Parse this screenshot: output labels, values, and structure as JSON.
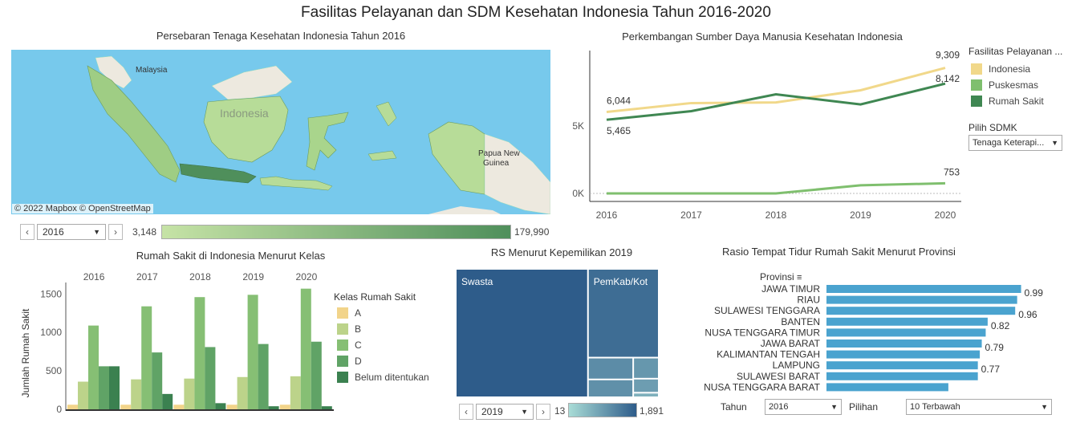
{
  "title": "Fasilitas Pelayanan dan SDM Kesehatan Indonesia Tahun 2016-2020",
  "map": {
    "title": "Persebaran Tenaga Kesehatan Indonesia Tahun 2016",
    "labels": {
      "malaysia": "Malaysia",
      "indonesia": "Indonesia",
      "png": "Papua New Guinea"
    },
    "attribution": "© 2022 Mapbox  © OpenStreetMap",
    "year": "2016",
    "range_min": "3,148",
    "range_max": "179,990",
    "colors": {
      "sea": "#77c9ec",
      "land_light": "#c6e3a6",
      "land_dark": "#4f8f5b",
      "foreign": "#ede9df"
    }
  },
  "line": {
    "title": "Perkembangan Sumber Daya Manusia Kesehatan Indonesia",
    "legend_title": "Fasilitas Pelayanan ...",
    "dropdown_label": "Pilih SDMK",
    "dropdown_value": "Tenaga Keterapi...",
    "y_ticks": [
      "0K",
      "5K"
    ],
    "x_ticks": [
      "2016",
      "2017",
      "2018",
      "2019",
      "2020"
    ]
  },
  "hospital_class": {
    "title": "Rumah Sakit di Indonesia Menurut Kelas",
    "ylabel": "Jumlah Rumah Sakit",
    "legend_title": "Kelas Rumah Sakit",
    "y_ticks": [
      "0",
      "500",
      "1000",
      "1500"
    ]
  },
  "treemap": {
    "title": "RS Menurut Kepemilikan  2019",
    "labels": {
      "swasta": "Swasta",
      "pemkab": "PemKab/Kot"
    },
    "year": "2019",
    "range_min": "13",
    "range_max": "1,891"
  },
  "bed_ratio": {
    "title": "Rasio Tempat  Tidur Rumah Sakit Menurut Provinsi",
    "axis_label": "Provinsi",
    "filter_year_label": "Tahun",
    "filter_year": "2016",
    "filter_choice_label": "Pilihan",
    "filter_choice": "10 Terbawah"
  },
  "chart_data": [
    {
      "type": "line",
      "title": "Perkembangan Sumber Daya Manusia Kesehatan Indonesia",
      "x": [
        2016,
        2017,
        2018,
        2019,
        2020
      ],
      "ylim": [
        0,
        10000
      ],
      "series": [
        {
          "name": "Indonesia",
          "color": "#f1d88a",
          "values": [
            6044,
            6700,
            6750,
            7650,
            9309
          ],
          "labels": {
            "0": "6,044",
            "4": "9,309"
          }
        },
        {
          "name": "Puskesmas",
          "color": "#7fbf6e",
          "values": [
            0,
            0,
            0,
            600,
            753
          ],
          "labels": {
            "4": "753"
          }
        },
        {
          "name": "Rumah Sakit",
          "color": "#3f8752",
          "values": [
            5465,
            6100,
            7350,
            6600,
            8142
          ],
          "labels": {
            "0": "5,465",
            "4": "8,142"
          }
        }
      ]
    },
    {
      "type": "bar",
      "title": "Rumah Sakit di Indonesia Menurut Kelas",
      "ylabel": "Jumlah Rumah Sakit",
      "categories": [
        "2016",
        "2017",
        "2018",
        "2019",
        "2020"
      ],
      "ylim": [
        0,
        1650
      ],
      "series": [
        {
          "name": "A",
          "color": "#f2d48a",
          "values": [
            60,
            60,
            60,
            60,
            60
          ]
        },
        {
          "name": "B",
          "color": "#bcd38a",
          "values": [
            360,
            390,
            400,
            420,
            430
          ]
        },
        {
          "name": "C",
          "color": "#86bf74",
          "values": [
            1090,
            1340,
            1460,
            1490,
            1570
          ]
        },
        {
          "name": "D",
          "color": "#60a366",
          "values": [
            560,
            740,
            810,
            850,
            880
          ]
        },
        {
          "name": "Belum ditentukan",
          "color": "#3b8150",
          "values": [
            560,
            200,
            80,
            40,
            40
          ]
        }
      ]
    },
    {
      "type": "treemap",
      "title": "RS Menurut Kepemilikan  2019",
      "items": [
        {
          "name": "Swasta",
          "value": 1891
        },
        {
          "name": "PemKab/Kot",
          "value": 700
        },
        {
          "name": "",
          "value": 110
        },
        {
          "name": "",
          "value": 90
        },
        {
          "name": "",
          "value": 60
        },
        {
          "name": "",
          "value": 40
        },
        {
          "name": "",
          "value": 13
        }
      ]
    },
    {
      "type": "bar",
      "title": "Rasio Tempat  Tidur Rumah Sakit Menurut Provinsi",
      "orientation": "horizontal",
      "categories": [
        "JAWA TIMUR",
        "RIAU",
        "SULAWESI TENGGARA",
        "BANTEN",
        "NUSA TENGGARA TIMUR",
        "JAWA BARAT",
        "KALIMANTAN TENGAH",
        "LAMPUNG",
        "SULAWESI BARAT",
        "NUSA TENGGARA BARAT"
      ],
      "values": [
        0.99,
        0.97,
        0.96,
        0.82,
        0.81,
        0.79,
        0.78,
        0.77,
        0.77,
        0.62
      ],
      "data_labels": [
        "0.99",
        "",
        "0.96",
        "0.82",
        "",
        "0.79",
        "",
        "0.77",
        "",
        ""
      ],
      "color": "#4aa3cf"
    }
  ]
}
